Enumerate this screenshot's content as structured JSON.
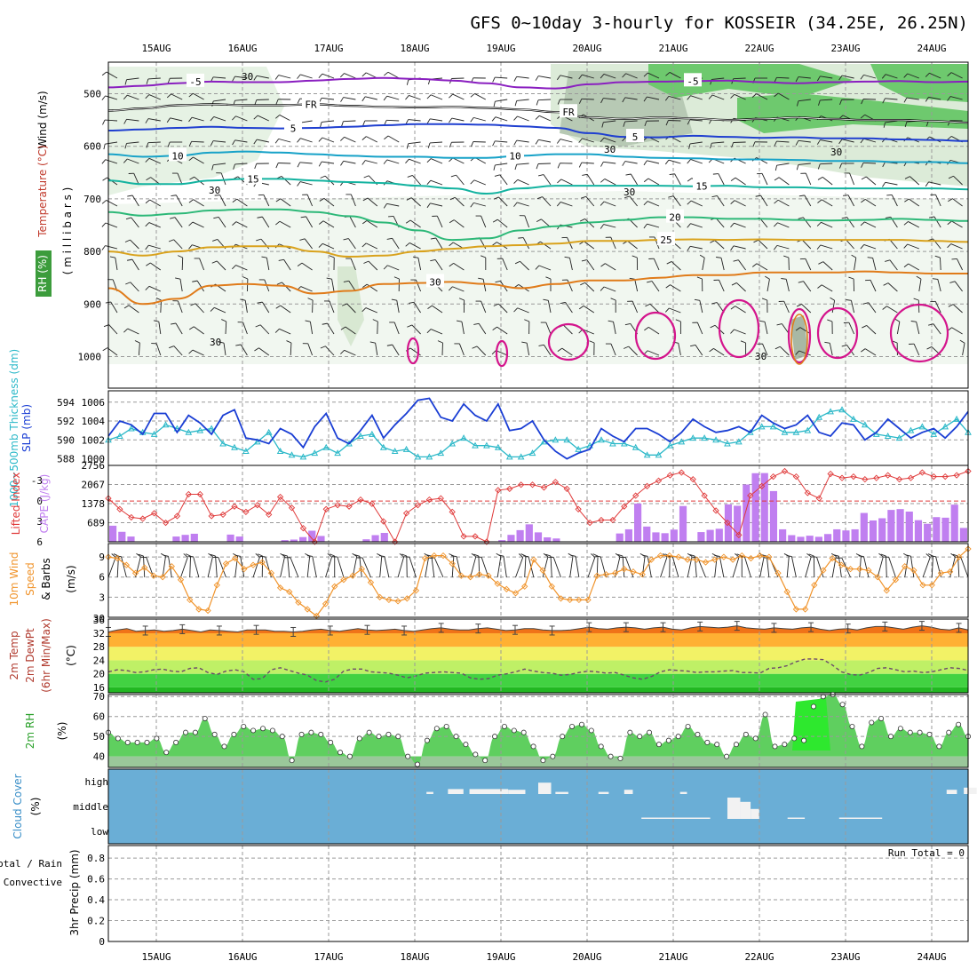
{
  "title": "GFS 0~10day 3-hourly for KOSSEIR (34.25E, 26.25N)",
  "days": [
    "15AUG",
    "16AUG",
    "17AUG",
    "18AUG",
    "19AUG",
    "20AUG",
    "21AUG",
    "22AUG",
    "23AUG",
    "24AUG"
  ],
  "colors": {
    "purple": "#8a1fc0",
    "blue": "#1f3fd0",
    "cyan": "#17a2c8",
    "teal": "#14b3a0",
    "green": "#2db878",
    "gold": "#d9a21c",
    "orange": "#e07b1a",
    "magenta": "#d4148c",
    "slp": "#1a3ed4",
    "thick": "#2ab8c8",
    "cape": "#c07ff0",
    "li": "#e03a3a",
    "wind": "#f0932a",
    "rh": "#5fcf5f",
    "cloud": "#6aaed6"
  },
  "chart_data": [
    {
      "type": "contour",
      "panel": "upper-air",
      "ylabel_wind": "Wind (m/s)",
      "ylabel_temp": "Temperature (°C)",
      "ylabel_rh": "RH (%)",
      "ylabel_p": "( m i l l i b a r s )",
      "y_ticks": [
        "500",
        "600",
        "700",
        "800",
        "900",
        "1000"
      ],
      "ylim": [
        1060,
        440
      ],
      "isotherms": [
        {
          "label": "-5",
          "color": "purple",
          "values": [
            488,
            485,
            480,
            477,
            478,
            478,
            475,
            472,
            470,
            472,
            475,
            480,
            488,
            490,
            482,
            478,
            477,
            476,
            475,
            478,
            480,
            478,
            477,
            476,
            478,
            477
          ]
        },
        {
          "label": "FR",
          "color": "#000000",
          "values": [
            532,
            528,
            522,
            520,
            522,
            522,
            520,
            523,
            525,
            526,
            525,
            527,
            530,
            535,
            545,
            548,
            545,
            547,
            550,
            548,
            545,
            548,
            550,
            550,
            552,
            555
          ]
        },
        {
          "label": "5",
          "color": "blue",
          "values": [
            570,
            568,
            565,
            563,
            565,
            566,
            565,
            563,
            560,
            558,
            558,
            559,
            562,
            565,
            575,
            582,
            583,
            580,
            582,
            584,
            583,
            585,
            585,
            587,
            588,
            590
          ]
        },
        {
          "label": "10",
          "color": "cyan",
          "values": [
            615,
            620,
            618,
            612,
            610,
            612,
            615,
            618,
            620,
            620,
            622,
            622,
            618,
            615,
            615,
            620,
            622,
            623,
            625,
            625,
            626,
            628,
            628,
            630,
            630,
            632
          ]
        },
        {
          "label": "15",
          "color": "teal",
          "values": [
            665,
            672,
            672,
            665,
            662,
            662,
            665,
            668,
            670,
            675,
            680,
            690,
            680,
            675,
            675,
            675,
            675,
            676,
            675,
            678,
            678,
            680,
            680,
            680,
            680,
            682
          ]
        },
        {
          "label": "20",
          "color": "green",
          "values": [
            725,
            732,
            728,
            722,
            720,
            720,
            725,
            733,
            745,
            760,
            778,
            775,
            760,
            752,
            745,
            740,
            735,
            735,
            738,
            738,
            740,
            741,
            740,
            738,
            740,
            742
          ]
        },
        {
          "label": "25",
          "color": "gold",
          "values": [
            800,
            808,
            800,
            792,
            790,
            790,
            800,
            810,
            808,
            800,
            795,
            790,
            788,
            785,
            780,
            780,
            778,
            777,
            778,
            777,
            778,
            778,
            778,
            778,
            780,
            782
          ]
        },
        {
          "label": "30",
          "color": "orange",
          "values": [
            870,
            900,
            890,
            865,
            862,
            865,
            880,
            875,
            862,
            860,
            858,
            862,
            870,
            862,
            855,
            855,
            850,
            845,
            845,
            840,
            840,
            840,
            838,
            840,
            842,
            842
          ]
        }
      ],
      "rh_contour_labels": [
        "30",
        "30",
        "30",
        "30",
        "30",
        "30",
        "30"
      ]
    },
    {
      "type": "line",
      "panel": "slp-thickness",
      "ylabel_thickness": "1000~500mb Thickness (dm)",
      "ylabel_slp": "SLP (mb)",
      "thickness_ticks": [
        "588",
        "590",
        "592",
        "594"
      ],
      "slp_ticks": [
        "1000",
        "1002",
        "1004",
        "1006"
      ],
      "ylim_thickness": [
        587.3,
        595.2
      ],
      "ylim_slp": [
        999.3,
        1007.2
      ],
      "slp": [
        1002.4,
        1004.0,
        1003.6,
        1002.6,
        1004.8,
        1004.8,
        1002.8,
        1004.6,
        1003.8,
        1002.6,
        1004.6,
        1005.2,
        1002.2,
        1002.0,
        1001.6,
        1003.2,
        1002.6,
        1001.2,
        1003.4,
        1004.8,
        1002.2,
        1001.6,
        1003.0,
        1004.6,
        1002.2,
        1003.6,
        1004.8,
        1006.2,
        1006.4,
        1004.4,
        1004.0,
        1005.8,
        1004.6,
        1004.0,
        1005.8,
        1003.0,
        1003.2,
        1004.0,
        1002.0,
        1000.8,
        1000.0,
        1000.6,
        1001.0,
        1003.2,
        1002.4,
        1001.8,
        1003.2,
        1003.2,
        1002.6,
        1001.8,
        1002.8,
        1004.2,
        1003.4,
        1002.8,
        1003.0,
        1003.4,
        1002.8,
        1004.6,
        1003.8,
        1003.2,
        1003.6,
        1004.6,
        1002.8,
        1002.4,
        1003.8,
        1003.6,
        1002.0,
        1002.8,
        1004.2,
        1003.2,
        1002.2,
        1002.8,
        1003.2,
        1002.2,
        1003.4,
        1005.0
      ],
      "thickness": [
        590.0,
        590.4,
        591.2,
        590.8,
        590.6,
        591.6,
        591.2,
        590.8,
        591.0,
        591.2,
        589.6,
        589.2,
        588.8,
        589.8,
        590.8,
        588.8,
        588.4,
        588.2,
        588.6,
        589.2,
        588.6,
        589.6,
        590.4,
        590.6,
        589.2,
        588.8,
        589.0,
        588.2,
        588.2,
        588.6,
        589.6,
        590.2,
        589.4,
        589.4,
        589.2,
        588.2,
        588.2,
        588.6,
        589.8,
        590.0,
        590.0,
        589.0,
        589.4,
        590.0,
        589.6,
        589.6,
        589.2,
        588.4,
        588.4,
        589.4,
        589.8,
        590.2,
        590.2,
        590.0,
        589.6,
        589.8,
        590.8,
        591.4,
        591.4,
        590.8,
        590.8,
        591.0,
        592.4,
        593.0,
        593.2,
        592.2,
        591.6,
        590.6,
        590.4,
        590.2,
        591.0,
        591.4,
        590.6,
        591.4,
        592.2,
        590.8
      ]
    },
    {
      "type": "bar",
      "panel": "cape-li",
      "ylabel_li": "Lifted Index",
      "ylabel_cape": "CAPE (J/kg)",
      "li_ticks": [
        "-3",
        "0",
        "3",
        "6"
      ],
      "cape_ticks": [
        "689",
        "1378",
        "2067",
        "2756"
      ],
      "ylim_li": [
        6,
        -5.25
      ],
      "ylim_cape": [
        0,
        2756
      ],
      "lifted_index": [
        -0.4,
        1.2,
        2.4,
        2.6,
        1.8,
        3.2,
        2.2,
        -1.0,
        -1.0,
        2.2,
        2.0,
        0.8,
        1.6,
        0.6,
        2.0,
        -0.6,
        1.0,
        4.0,
        6.0,
        1.2,
        0.6,
        0.8,
        -0.2,
        0.4,
        3.0,
        6.0,
        1.8,
        0.6,
        -0.2,
        -0.4,
        1.6,
        5.2,
        5.2,
        6.0,
        -1.6,
        -1.8,
        -2.4,
        -2.4,
        -2.0,
        -2.8,
        -1.8,
        1.2,
        3.2,
        2.8,
        2.8,
        0.8,
        -0.8,
        -2.2,
        -3.0,
        -3.8,
        -4.2,
        -3.2,
        -0.8,
        1.4,
        3.2,
        5.0,
        -0.8,
        -2.2,
        -3.6,
        -4.4,
        -3.6,
        -1.2,
        -0.4,
        -4.0,
        -3.4,
        -3.6,
        -3.2,
        -3.4,
        -3.8,
        -3.2,
        -3.4,
        -4.2,
        -3.6,
        -3.6,
        -3.8,
        -4.4
      ],
      "cape": [
        580,
        360,
        190,
        0,
        0,
        0,
        0,
        190,
        250,
        290,
        0,
        0,
        0,
        260,
        190,
        0,
        0,
        0,
        0,
        60,
        80,
        170,
        400,
        210,
        0,
        0,
        0,
        0,
        90,
        240,
        320,
        0,
        0,
        0,
        0,
        0,
        0,
        0,
        0,
        0,
        0,
        0,
        0,
        60,
        250,
        420,
        630,
        340,
        160,
        120,
        0,
        0,
        0,
        0,
        0,
        0,
        300,
        450,
        1380,
        550,
        340,
        310,
        440,
        1290,
        0,
        350,
        430,
        470,
        1350,
        1300,
        2066,
        2475,
        2480,
        1830,
        450,
        240,
        180,
        220,
        180,
        280,
        450,
        410,
        450,
        1040,
        770,
        850,
        1150,
        1180,
        1090,
        780,
        650,
        890,
        870,
        1340,
        500
      ]
    },
    {
      "type": "line",
      "panel": "wind10m",
      "ylabel": "10m Wind Speed & Barbs",
      "yunit": "(m/s)",
      "y_ticks": [
        "3",
        "6",
        "9"
      ],
      "ylim": [
        0,
        11
      ],
      "speed": [
        9.0,
        8.8,
        7.8,
        6.6,
        7.4,
        6.2,
        6.0,
        7.6,
        5.6,
        2.6,
        1.2,
        1.0,
        4.8,
        8.0,
        8.8,
        7.2,
        7.8,
        8.2,
        6.6,
        4.4,
        3.8,
        2.2,
        1.2,
        0.2,
        2.0,
        4.6,
        5.6,
        6.2,
        7.2,
        5.2,
        3.0,
        2.6,
        2.4,
        2.8,
        4.0,
        8.8,
        9.2,
        9.2,
        8.0,
        6.2,
        6.0,
        6.4,
        6.2,
        5.0,
        4.2,
        3.6,
        4.6,
        8.6,
        7.0,
        4.6,
        2.8,
        2.6,
        2.6,
        2.6,
        6.2,
        6.4,
        6.6,
        7.2,
        6.8,
        6.4,
        8.6,
        9.2,
        9.2,
        9.0,
        8.6,
        8.6,
        8.2,
        8.6,
        9.0,
        8.6,
        9.2,
        8.8,
        9.2,
        9.0,
        6.6,
        3.8,
        1.2,
        1.2,
        4.8,
        7.0,
        8.8,
        7.8,
        7.2,
        7.2,
        7.0,
        6.0,
        4.0,
        5.6,
        7.6,
        7.0,
        4.8,
        4.8,
        6.6,
        6.8,
        9.0,
        10.2
      ]
    },
    {
      "type": "area",
      "panel": "temp2m",
      "ylabel": "2m Temp 2m DewPt (6hr Min/Max)",
      "yunit": "(°C)",
      "y_ticks": [
        "16",
        "20",
        "24",
        "28",
        "32",
        "36"
      ],
      "ylim": [
        14.4,
        36.2
      ],
      "temp": [
        32.4,
        33.0,
        33.4,
        32.6,
        32.8,
        33.0,
        32.6,
        32.8,
        33.2,
        32.8,
        32.4,
        33.0,
        32.8,
        32.6,
        32.4,
        33.0,
        33.0,
        33.0,
        32.6,
        32.6,
        32.4,
        32.6,
        33.0,
        33.2,
        32.8,
        32.6,
        33.0,
        33.4,
        33.0,
        32.8,
        33.0,
        33.2,
        32.8,
        32.6,
        33.0,
        33.4,
        33.6,
        33.2,
        33.0,
        33.0,
        33.4,
        33.6,
        33.2,
        32.8,
        33.0,
        33.4,
        33.4,
        33.0,
        32.8,
        32.8,
        33.0,
        33.4,
        33.8,
        33.4,
        33.2,
        33.6,
        33.8,
        33.6,
        33.2,
        33.6,
        33.8,
        33.2,
        33.0,
        33.6,
        34.0,
        33.8,
        33.6,
        33.8,
        34.2,
        33.6,
        33.4,
        33.2,
        33.6,
        33.4,
        33.2,
        33.6,
        33.8,
        33.2,
        32.8,
        33.2,
        33.4,
        33.0,
        33.6,
        34.0,
        34.0,
        33.6,
        33.2,
        33.8,
        34.2,
        33.8,
        33.2,
        33.0,
        33.6,
        33.0
      ],
      "dewpoint": [
        20.6,
        21.2,
        21.0,
        20.4,
        20.6,
        21.2,
        21.4,
        20.8,
        20.6,
        21.6,
        21.8,
        20.4,
        19.8,
        20.8,
        21.2,
        20.6,
        18.4,
        18.6,
        21.2,
        21.8,
        21.0,
        20.2,
        19.6,
        18.0,
        17.6,
        18.4,
        20.8,
        21.4,
        21.4,
        20.6,
        20.4,
        20.2,
        19.6,
        18.8,
        19.4,
        20.2,
        20.4,
        20.6,
        20.4,
        20.2,
        18.8,
        18.4,
        18.6,
        19.6,
        20.0,
        20.6,
        21.4,
        20.8,
        20.4,
        20.2,
        19.6,
        19.8,
        20.4,
        20.8,
        20.6,
        20.2,
        20.4,
        19.6,
        18.8,
        18.4,
        19.2,
        20.6,
        21.2,
        21.0,
        20.8,
        20.4,
        20.6,
        20.6,
        20.8,
        21.0,
        20.4,
        20.4,
        20.2,
        21.6,
        21.8,
        22.4,
        23.6,
        24.4,
        24.4,
        24.2,
        22.6,
        20.6,
        19.8,
        19.6,
        20.4,
        21.6,
        21.8,
        21.2,
        20.6,
        20.8,
        20.4,
        20.6,
        21.2,
        21.8,
        21.6,
        21.0
      ]
    },
    {
      "type": "area",
      "panel": "rh2m",
      "ylabel": "2m RH",
      "yunit": "(%)",
      "y_ticks": [
        "40",
        "50",
        "60",
        "70"
      ],
      "ylim": [
        34.5,
        71
      ],
      "rh": [
        52,
        49,
        47,
        47,
        47,
        49,
        42,
        47,
        52,
        52,
        59,
        51,
        45,
        51,
        55,
        53,
        54,
        53,
        50,
        38,
        51,
        52,
        51,
        47,
        42,
        40,
        49,
        52,
        50,
        51,
        50,
        40,
        36,
        48,
        54,
        55,
        50,
        46,
        41,
        38,
        50,
        55,
        53,
        52,
        45,
        38,
        40,
        50,
        55,
        56,
        53,
        45,
        40,
        39,
        52,
        50,
        52,
        46,
        48,
        50,
        55,
        51,
        47,
        46,
        40,
        46,
        51,
        49,
        61,
        45,
        46,
        49,
        48,
        65,
        70,
        71,
        66,
        55,
        45,
        57,
        59,
        50,
        54,
        52,
        52,
        51,
        45,
        52,
        56,
        50
      ]
    },
    {
      "type": "heatmap",
      "panel": "cloud",
      "ylabel": "Cloud Cover",
      "yunit": "(%)",
      "levels": [
        "high",
        "middle",
        "low"
      ],
      "high_gaps": [
        {
          "x": 0.37,
          "w": 0.008,
          "d": 0.3
        },
        {
          "x": 0.395,
          "w": 0.018,
          "d": 0.7
        },
        {
          "x": 0.42,
          "w": 0.045,
          "d": 0.7
        },
        {
          "x": 0.465,
          "w": 0.02,
          "d": 0.6
        },
        {
          "x": 0.5,
          "w": 0.015,
          "d": 1.6
        },
        {
          "x": 0.52,
          "w": 0.015,
          "d": 0.3
        },
        {
          "x": 0.57,
          "w": 0.012,
          "d": 0.3
        },
        {
          "x": 0.6,
          "w": 0.01,
          "d": 0.6
        },
        {
          "x": 0.665,
          "w": 0.008,
          "d": 0.3
        },
        {
          "x": 0.975,
          "w": 0.012,
          "d": 0.6
        },
        {
          "x": 0.995,
          "w": 0.015,
          "d": 0.9
        }
      ],
      "middle_gaps": [
        {
          "x": 0.62,
          "w": 0.02,
          "d": 0.05
        },
        {
          "x": 0.64,
          "w": 0.06,
          "d": 0.05
        },
        {
          "x": 0.72,
          "w": 0.015,
          "d": 1.5
        },
        {
          "x": 0.735,
          "w": 0.012,
          "d": 1.2
        },
        {
          "x": 0.747,
          "w": 0.01,
          "d": 0.7
        },
        {
          "x": 0.79,
          "w": 0.02,
          "d": 0.05
        },
        {
          "x": 0.85,
          "w": 0.05,
          "d": 0.04
        }
      ],
      "run_total": "Run Total = 0"
    },
    {
      "type": "bar",
      "panel": "precip",
      "ylabel_total": "Total / Rain",
      "ylabel_conv": "Convective",
      "ylabel": "3hr Precip (mm)",
      "y_ticks": [
        "0",
        "0.2",
        "0.4",
        "0.6",
        "0.8"
      ],
      "ylim": [
        0,
        0.92
      ],
      "values": []
    }
  ]
}
